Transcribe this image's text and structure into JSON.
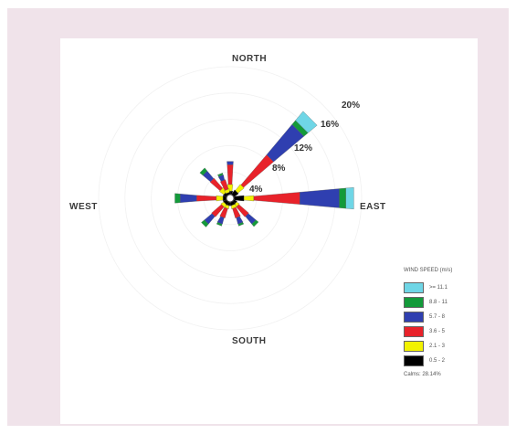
{
  "chart_data": {
    "type": "wind-rose",
    "directions": {
      "north": "NORTH",
      "south": "SOUTH",
      "east": "EAST",
      "west": "WEST"
    },
    "ring_labels": [
      "4%",
      "8%",
      "12%",
      "16%",
      "20%"
    ],
    "rings_percent": [
      4,
      8,
      12,
      16,
      20
    ],
    "legend_title": "WIND SPEED (m/s)",
    "bins": [
      {
        "label": "0.5 - 2",
        "color": "#000000"
      },
      {
        "label": "2.1 - 3",
        "color": "#f2f200"
      },
      {
        "label": "3.6 - 5",
        "color": "#e8222a"
      },
      {
        "label": "5.7 - 8",
        "color": "#2f3fb0"
      },
      {
        "label": "8.8 - 11",
        "color": "#139a3a"
      },
      {
        "label": ">= 11.1",
        "color": "#6fd6e6"
      }
    ],
    "calms": "Calms: 28.14%",
    "petals": [
      {
        "bearing": 0,
        "values": [
          0.5,
          1.0,
          3.0,
          0.5,
          0,
          0
        ]
      },
      {
        "bearing": 45,
        "values": [
          0.8,
          1.2,
          6.0,
          6.0,
          0.8,
          1.8
        ]
      },
      {
        "bearing": 90,
        "values": [
          1.5,
          1.5,
          7.0,
          6.0,
          1.0,
          1.2
        ]
      },
      {
        "bearing": 135,
        "values": [
          0.5,
          0.5,
          2.0,
          1.5,
          0.5,
          0
        ]
      },
      {
        "bearing": 157.5,
        "values": [
          0.5,
          0.5,
          1.5,
          1.0,
          0.3,
          0
        ]
      },
      {
        "bearing": 202.5,
        "values": [
          0.5,
          0.5,
          1.5,
          1.0,
          0.3,
          0
        ]
      },
      {
        "bearing": 225,
        "values": [
          0.5,
          0.5,
          2.0,
          1.5,
          0.6,
          0
        ]
      },
      {
        "bearing": 270,
        "values": [
          0.5,
          1.0,
          3.0,
          2.5,
          0.8,
          0
        ]
      },
      {
        "bearing": 315,
        "values": [
          0.5,
          0.8,
          2.0,
          1.5,
          0.6,
          0
        ]
      },
      {
        "bearing": 337.5,
        "values": [
          0.3,
          0.5,
          1.5,
          0.8,
          0.3,
          0
        ]
      }
    ]
  }
}
